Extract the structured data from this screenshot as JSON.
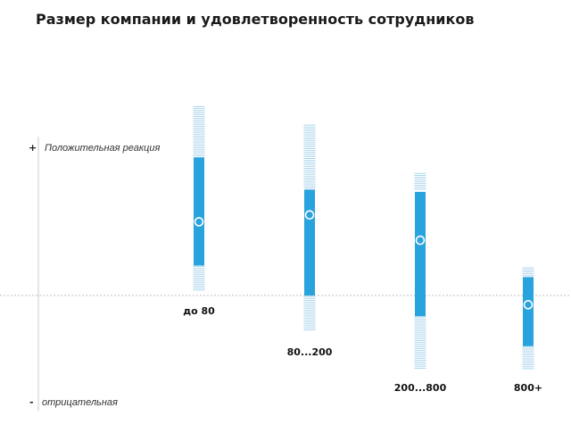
{
  "chart_data": {
    "type": "range",
    "title": "Размер компании и удовлетворенность сотрудников",
    "y_axis": {
      "positive_sign": "+",
      "positive_label": "Положительная реакция",
      "negative_sign": "-",
      "negative_label": "отрицательная"
    },
    "ylim": [
      -1,
      1
    ],
    "categories": [
      "до 80",
      "80...200",
      "200...800",
      "800+"
    ],
    "series": [
      {
        "whisker_high": [
          0.82,
          0.74,
          0.53,
          0.12
        ],
        "box_high": [
          0.6,
          0.46,
          0.45,
          0.08
        ],
        "mean": [
          0.32,
          0.35,
          0.24,
          -0.04
        ],
        "box_low": [
          0.13,
          0,
          -0.09,
          -0.22
        ],
        "whisker_low": [
          0.02,
          -0.15,
          -0.32,
          -0.32
        ]
      }
    ],
    "colors": {
      "box": "#29a3dd",
      "whisker": "#a9d4ec",
      "axis": "#cccccc",
      "zero_line": "#bfbfbf"
    }
  }
}
